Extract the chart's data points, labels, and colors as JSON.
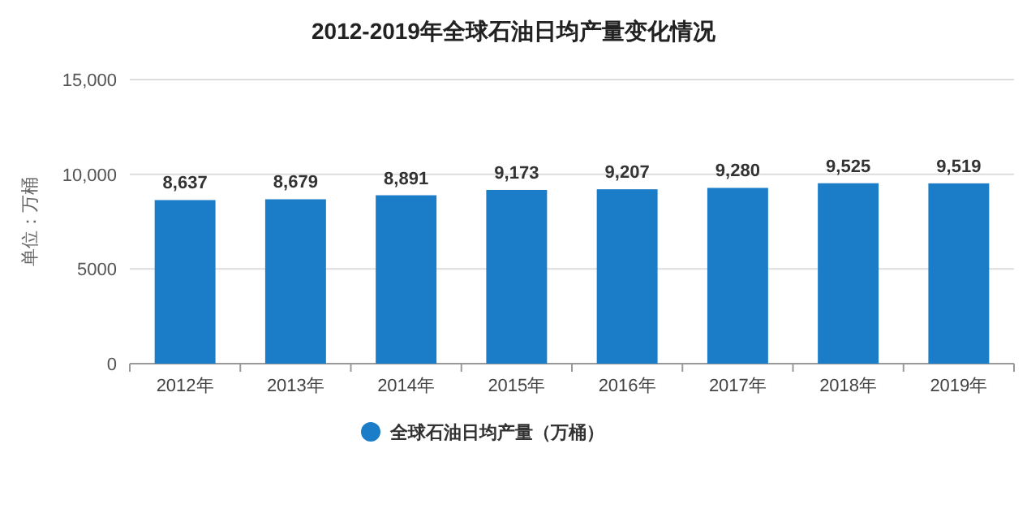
{
  "chart_data": {
    "type": "bar",
    "title": "2012-2019年全球石油日均产量变化情况",
    "ylabel": "单位：万桶",
    "categories": [
      "2012年",
      "2013年",
      "2014年",
      "2015年",
      "2016年",
      "2017年",
      "2018年",
      "2019年"
    ],
    "series": [
      {
        "name": "全球石油日均产量（万桶）",
        "color": "#1b7dc8",
        "values": [
          8637,
          8679,
          8891,
          9173,
          9207,
          9280,
          9525,
          9519
        ],
        "value_labels": [
          "8,637",
          "8,679",
          "8,891",
          "9,173",
          "9,207",
          "9,280",
          "9,525",
          "9,519"
        ]
      }
    ],
    "ylim": [
      0,
      15000
    ],
    "yticks": [
      0,
      5000,
      {
        "value": 10000,
        "label": "10,000"
      },
      {
        "value": 15000,
        "label": "15,000"
      }
    ],
    "grid": "y",
    "legend": "bottom"
  }
}
